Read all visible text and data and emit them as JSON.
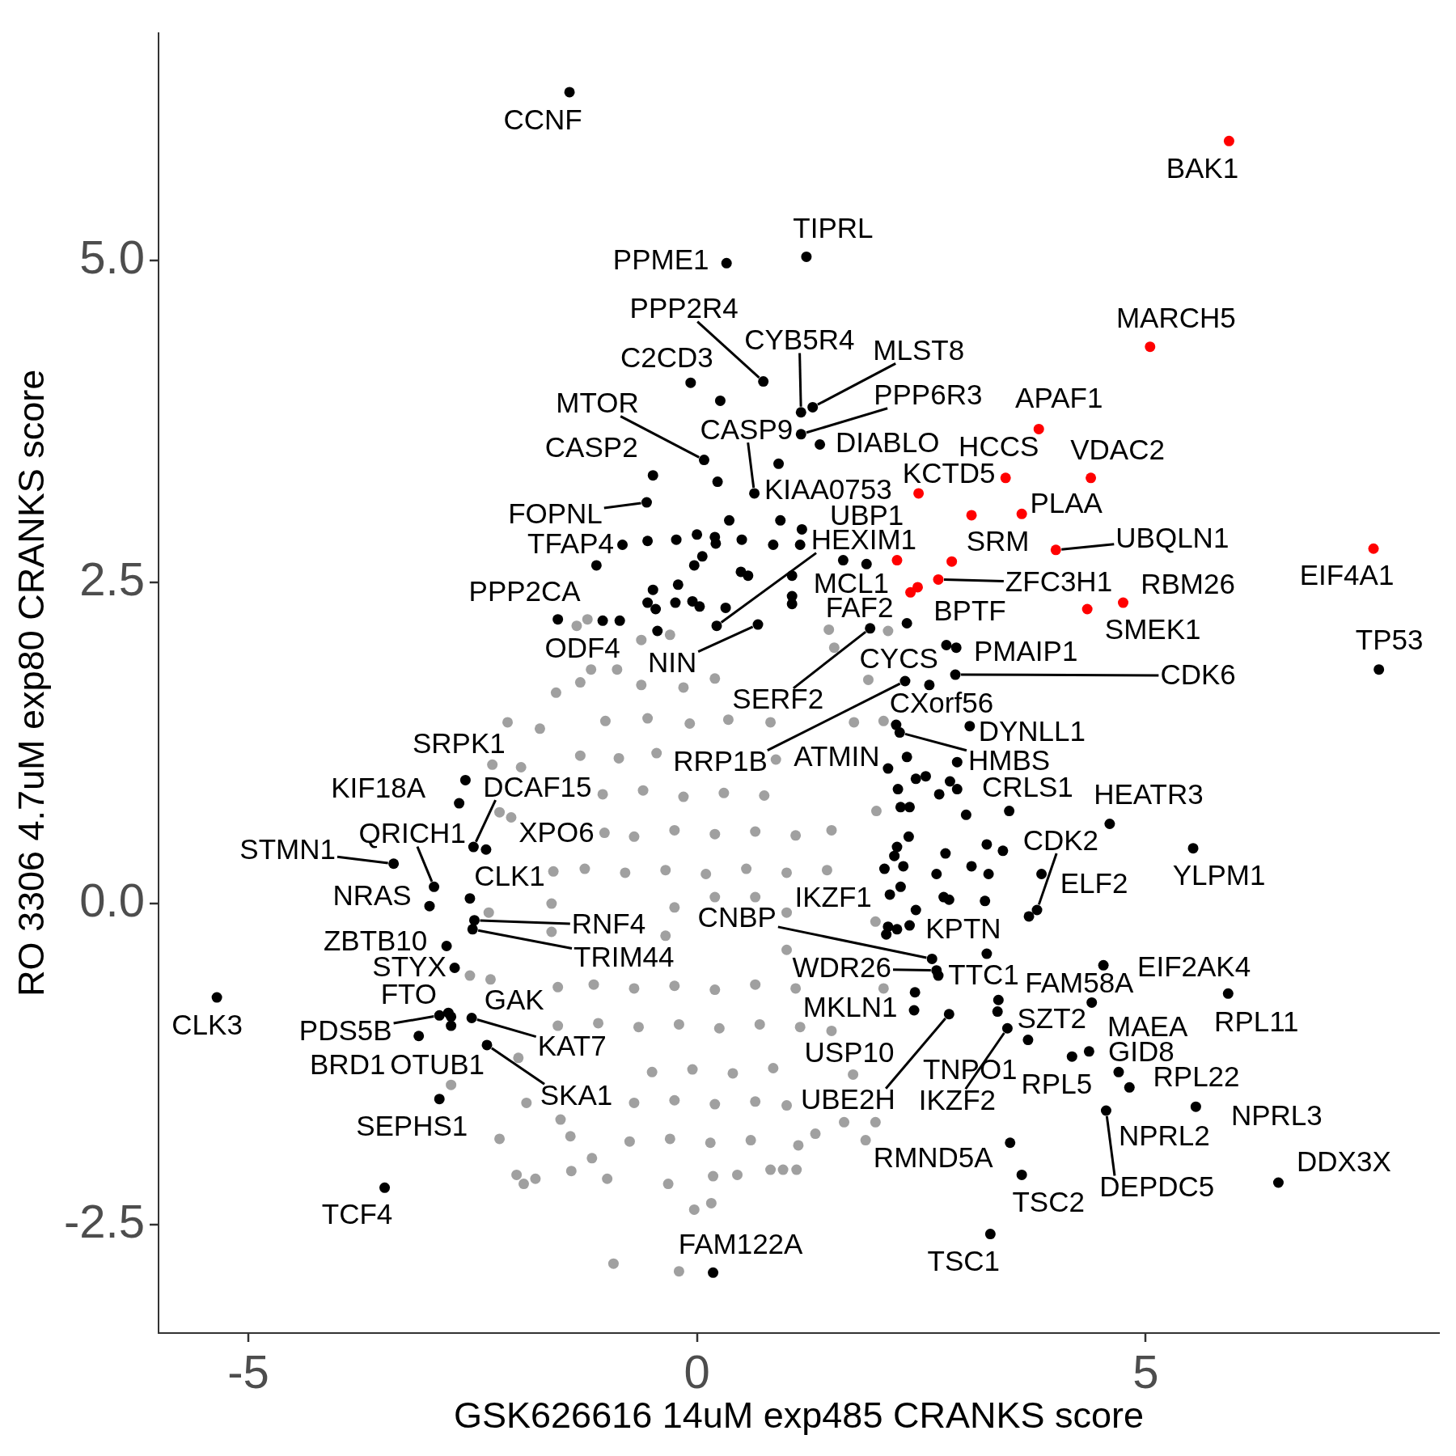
{
  "chart_data": {
    "type": "scatter",
    "xlabel": "GSK626616 14uM exp485 CRANKS score",
    "ylabel": "RO 3306 4.7uM exp80 CRANKS score",
    "xlim": [
      -6,
      8.27
    ],
    "ylim": [
      -3.34,
      6.77
    ],
    "xticks": [
      -5,
      0,
      5
    ],
    "yticks": [
      -2.5,
      {
        "value": 0,
        "label": "0.0"
      },
      2.5,
      {
        "value": 5,
        "label": "5.0"
      }
    ],
    "grid": false,
    "legend": false,
    "marker": "circle",
    "series": [
      {
        "color": "#a0a0a0",
        "x": [
          -2.11,
          -1.75,
          -1.57,
          -1.3,
          -2.28,
          -1.96,
          -2.2,
          -2.07,
          -2.53,
          -2.32,
          -2.2,
          -2.01,
          -1.93,
          -1.8,
          -1.4,
          -1.0,
          -0.93,
          -2.74,
          -1.52,
          -1.41,
          -1.17,
          -1.9,
          -1.99,
          -2.3,
          -0.2,
          -0.03,
          0.16,
          -0.32,
          0.18,
          0.45,
          0.96,
          1.11,
          0.82,
          1.13,
          1.88,
          1.99,
          1.64,
          1.32,
          1.74,
          2.08,
          1.99,
          2.0,
          1.75,
          2.08,
          1.47,
          2.13,
          -0.62,
          -0.3,
          -1.34,
          -1.22,
          -1.18,
          -0.89,
          1.53,
          1.91,
          -0.62,
          -0.15,
          0.2,
          -1.02,
          -0.55,
          -0.08,
          0.35,
          0.82,
          -1.3,
          -0.87,
          -0.45,
          0.88,
          -1.05,
          -0.6,
          -0.15,
          0.3,
          0.75,
          -1.03,
          -0.7,
          -0.25,
          0.2,
          0.65,
          1.1,
          1.5,
          -1.6,
          -1.25,
          -0.8,
          -0.35,
          0.1,
          0.55,
          1.0,
          1.45,
          -1.62,
          -0.25,
          0.2,
          0.65,
          1.0,
          -1.62,
          -0.35,
          1.0,
          -1.55,
          -1.15,
          -0.7,
          -0.25,
          0.2,
          0.65,
          1.1,
          -1.55,
          -1.1,
          -0.65,
          -0.2,
          0.25,
          0.7,
          1.15,
          1.5,
          -0.5,
          -0.05,
          0.4,
          0.85,
          -0.7,
          -0.25,
          0.2,
          0.65,
          1.0,
          -0.75,
          -0.3,
          0.15,
          0.6
        ],
        "values": [
          1.41,
          1.36,
          1.64,
          1.72,
          1.08,
          1.06,
          0.71,
          0.67,
          -0.56,
          -0.07,
          -1.83,
          -2.11,
          -2.18,
          -2.14,
          -2.08,
          -2.14,
          -2.8,
          -1.41,
          -1.68,
          -1.81,
          -1.98,
          -1.55,
          -1.2,
          -0.59,
          -2.86,
          -2.38,
          -2.33,
          -2.18,
          -2.12,
          -2.11,
          -2.07,
          -2.07,
          -2.07,
          -1.88,
          -1.84,
          -1.7,
          -1.7,
          -1.79,
          -1.33,
          -0.66,
          -0.14,
          0.72,
          1.41,
          1.42,
          2.13,
          2.12,
          2.05,
          2.09,
          2.16,
          2.21,
          1.82,
          1.82,
          1.99,
          1.74,
          1.7,
          1.68,
          1.75,
          1.42,
          1.44,
          1.4,
          1.43,
          1.41,
          1.15,
          1.13,
          1.17,
          1.12,
          0.85,
          0.88,
          0.83,
          0.86,
          0.84,
          0.55,
          0.52,
          0.57,
          0.54,
          0.56,
          0.53,
          0.57,
          0.25,
          0.27,
          0.24,
          0.26,
          0.23,
          0.27,
          0.24,
          0.26,
          0.0,
          -0.03,
          0.05,
          0.05,
          -0.07,
          -0.22,
          -0.25,
          -0.36,
          -0.65,
          -0.63,
          -0.66,
          -0.64,
          -0.67,
          -0.63,
          -0.66,
          -0.95,
          -0.93,
          -0.96,
          -0.94,
          -0.97,
          -0.94,
          -0.96,
          -0.99,
          -1.31,
          -1.29,
          -1.32,
          -1.28,
          -1.55,
          -1.53,
          -1.56,
          -1.54,
          -1.57,
          -1.85,
          -1.83,
          -1.86,
          -1.84
        ]
      },
      {
        "color": "#000000",
        "x": [
          -1.42,
          1.22,
          0.33,
          0.74,
          -0.07,
          1.16,
          1.29,
          1.16,
          0.08,
          0.91,
          1.37,
          0.64,
          -0.49,
          -0.56,
          -0.83,
          -1.55,
          -1.05,
          2.78,
          2.89,
          1.93,
          2.34,
          2.88,
          0.68,
          0.22,
          2.59,
          2.32,
          3.04,
          2.22,
          2.26,
          2.9,
          4.6,
          3.79,
          3.84,
          3.35,
          3.23,
          2.15,
          2.62,
          2.67,
          2.69,
          3.36,
          2.43,
          2.42,
          2.81,
          3.69,
          3.46,
          3.49,
          3.62,
          3.27,
          0.18,
          4.53,
          5.92,
          4.4,
          4.37,
          4.18,
          4.7,
          4.82,
          4.56,
          5.56,
          6.48,
          5.53,
          7.6,
          -2.58,
          -2.65,
          -2.49,
          -2.35,
          -2.93,
          -3.38,
          -2.98,
          -2.53,
          -2.48,
          -2.5,
          -2.79,
          -2.7,
          -2.77,
          -2.87,
          -2.74,
          -2.51,
          -2.74,
          -3.1,
          -2.34,
          -2.87,
          -5.35,
          -3.48,
          0.26,
          0.23,
          0.36,
          0.93,
          -0.23,
          0.0,
          0.2,
          0.21,
          0.5,
          0.85,
          1.17,
          1.15,
          0.06,
          -0.03,
          0.49,
          0.57,
          1.06,
          1.63,
          1.89,
          -0.49,
          -0.21,
          -0.55,
          -0.46,
          -0.24,
          -0.05,
          0.03,
          0.32,
          1.06,
          1.06,
          -0.44,
          -0.55,
          -1.12,
          -0.86,
          2.34,
          2.13,
          2.44,
          2.55,
          2.82,
          2.7,
          2.9,
          2.24,
          2.27,
          2.37,
          3.0,
          3.48,
          2.36,
          2.23,
          2.2,
          2.3,
          2.09,
          2.27,
          3.23,
          3.41,
          2.77,
          3.06,
          2.67,
          3.25,
          2.75,
          2.81,
          3.21,
          2.44,
          3.7,
          2.13,
          2.23,
          2.37,
          2.11
        ],
        "values": [
          6.31,
          5.03,
          4.98,
          4.06,
          4.05,
          3.82,
          3.86,
          3.65,
          3.45,
          3.42,
          3.57,
          3.19,
          3.33,
          3.12,
          2.79,
          2.21,
          2.2,
          2.01,
          1.99,
          2.14,
          2.18,
          1.78,
          2.17,
          2.16,
          1.7,
          1.73,
          1.38,
          1.39,
          1.33,
          1.1,
          0.62,
          -0.05,
          0.23,
          -0.84,
          -0.39,
          0.07,
          -0.43,
          -0.52,
          -0.56,
          -0.75,
          -0.69,
          -0.83,
          -0.86,
          -1.06,
          -0.97,
          -1.86,
          -2.11,
          -2.57,
          -2.87,
          -0.48,
          -0.7,
          -0.77,
          -1.15,
          -1.19,
          -1.31,
          -1.43,
          -1.61,
          -1.58,
          -2.17,
          0.43,
          1.82,
          0.96,
          0.78,
          0.44,
          0.42,
          0.13,
          0.31,
          -0.02,
          0.04,
          -0.13,
          -0.2,
          -0.33,
          -0.5,
          -0.85,
          -0.87,
          -0.88,
          -0.89,
          -0.95,
          -1.03,
          -1.1,
          -1.52,
          -0.73,
          -2.21,
          3.91,
          3.28,
          2.98,
          2.98,
          2.83,
          2.87,
          2.85,
          2.8,
          2.83,
          2.79,
          2.91,
          2.79,
          2.7,
          2.63,
          2.58,
          2.55,
          2.55,
          2.67,
          2.64,
          2.44,
          2.48,
          2.34,
          2.29,
          2.34,
          2.35,
          2.31,
          2.3,
          2.39,
          2.33,
          2.12,
          2.82,
          2.63,
          2.2,
          1.14,
          1.05,
          0.97,
          0.99,
          0.95,
          0.85,
          0.89,
          0.89,
          0.75,
          0.75,
          0.69,
          0.72,
          0.52,
          0.44,
          0.37,
          0.29,
          0.27,
          0.13,
          0.46,
          0.41,
          0.39,
          0.29,
          0.23,
          0.23,
          0.05,
          0.03,
          0.02,
          -0.05,
          -0.1,
          -0.18,
          -0.2,
          -0.17,
          -0.24
        ]
      },
      {
        "color": "#ff0000",
        "x": [
          5.93,
          5.05,
          7.54,
          3.81,
          3.44,
          4.39,
          2.47,
          3.06,
          3.62,
          4.0,
          2.23,
          2.84,
          2.69,
          2.38,
          4.75,
          4.35,
          2.46
        ],
        "values": [
          5.93,
          4.33,
          2.76,
          3.69,
          3.31,
          3.31,
          3.19,
          3.02,
          3.03,
          2.75,
          2.67,
          2.66,
          2.52,
          2.42,
          2.34,
          2.29,
          2.46
        ]
      }
    ],
    "annotations": [
      {
        "text": "CCNF",
        "x": -1.42,
        "y": 6.31
      },
      {
        "text": "TIPRL",
        "x": 1.22,
        "y": 5.03
      },
      {
        "text": "PPME1",
        "x": 0.33,
        "y": 4.98
      },
      {
        "text": "PPP2R4",
        "x": 0.74,
        "y": 4.06
      },
      {
        "text": "C2CD3",
        "x": -0.07,
        "y": 4.05
      },
      {
        "text": "CYB5R4",
        "x": 1.16,
        "y": 3.82
      },
      {
        "text": "MLST8",
        "x": 1.29,
        "y": 3.86
      },
      {
        "text": "PPP6R3",
        "x": 1.16,
        "y": 3.65
      },
      {
        "text": "MTOR",
        "x": 0.08,
        "y": 3.45
      },
      {
        "text": "KIAA0753",
        "x": 0.91,
        "y": 3.42
      },
      {
        "text": "DIABLO",
        "x": 1.37,
        "y": 3.57
      },
      {
        "text": "CASP9",
        "x": 0.64,
        "y": 3.19
      },
      {
        "text": "CASP2",
        "x": -0.49,
        "y": 3.33
      },
      {
        "text": "FOPNL",
        "x": -0.56,
        "y": 3.12
      },
      {
        "text": "TFAP4",
        "x": -0.83,
        "y": 2.79
      },
      {
        "text": "PPP2CA",
        "x": -1.55,
        "y": 2.21
      },
      {
        "text": "ODF4",
        "x": -1.05,
        "y": 2.2
      },
      {
        "text": "BPTF",
        "x": 2.78,
        "y": 2.01
      },
      {
        "text": "PMAIP1",
        "x": 2.89,
        "y": 1.99
      },
      {
        "text": "CYCS",
        "x": 2.34,
        "y": 2.18
      },
      {
        "text": "SERF2",
        "x": 1.93,
        "y": 2.14
      },
      {
        "text": "CDK6",
        "x": 2.88,
        "y": 1.78
      },
      {
        "text": "NIN",
        "x": 0.68,
        "y": 2.17
      },
      {
        "text": "HEXIM1",
        "x": 0.22,
        "y": 2.16
      },
      {
        "text": "CXorf56",
        "x": 2.59,
        "y": 1.7
      },
      {
        "text": "RRP1B",
        "x": 2.32,
        "y": 1.73
      },
      {
        "text": "DYNLL1",
        "x": 3.04,
        "y": 1.38
      },
      {
        "text": "ATMIN",
        "x": 2.22,
        "y": 1.39
      },
      {
        "text": "HMBS",
        "x": 2.26,
        "y": 1.33
      },
      {
        "text": "CRLS1",
        "x": 2.9,
        "y": 1.1
      },
      {
        "text": "HEATR3",
        "x": 4.6,
        "y": 0.62
      },
      {
        "text": "CDK2",
        "x": 3.79,
        "y": -0.05
      },
      {
        "text": "ELF2",
        "x": 3.84,
        "y": 0.23
      },
      {
        "text": "SZT2",
        "x": 3.35,
        "y": -0.84
      },
      {
        "text": "KPTN",
        "x": 3.23,
        "y": -0.39
      },
      {
        "text": "IKZF1",
        "x": 2.15,
        "y": 0.07
      },
      {
        "text": "CNBP",
        "x": 2.62,
        "y": -0.43
      },
      {
        "text": "WDR26",
        "x": 2.67,
        "y": -0.52
      },
      {
        "text": "TTC1",
        "x": 2.69,
        "y": -0.56
      },
      {
        "text": "FAM58A",
        "x": 3.36,
        "y": -0.75
      },
      {
        "text": "MKLN1",
        "x": 2.43,
        "y": -0.69
      },
      {
        "text": "USP10",
        "x": 2.42,
        "y": -0.83
      },
      {
        "text": "UBE2H",
        "x": 2.81,
        "y": -0.86
      },
      {
        "text": "TNPO1",
        "x": 3.69,
        "y": -1.06
      },
      {
        "text": "IKZF2",
        "x": 3.46,
        "y": -0.97
      },
      {
        "text": "RMND5A",
        "x": 3.49,
        "y": -1.86
      },
      {
        "text": "TSC2",
        "x": 3.62,
        "y": -2.11
      },
      {
        "text": "TSC1",
        "x": 3.27,
        "y": -2.57
      },
      {
        "text": "FAM122A",
        "x": 0.18,
        "y": -2.87
      },
      {
        "text": "EIF2AK4",
        "x": 4.53,
        "y": -0.48
      },
      {
        "text": "RPL11",
        "x": 5.92,
        "y": -0.7
      },
      {
        "text": "MAEA",
        "x": 4.4,
        "y": -0.77
      },
      {
        "text": "RPL5",
        "x": 4.37,
        "y": -1.15
      },
      {
        "text": "GID8",
        "x": 4.18,
        "y": -1.19
      },
      {
        "text": "RPL22",
        "x": 4.7,
        "y": -1.31
      },
      {
        "text": "NPRL2",
        "x": 4.82,
        "y": -1.43
      },
      {
        "text": "DEPDC5",
        "x": 4.56,
        "y": -1.61
      },
      {
        "text": "NPRL3",
        "x": 5.56,
        "y": -1.58
      },
      {
        "text": "DDX3X",
        "x": 6.48,
        "y": -2.17
      },
      {
        "text": "YLPM1",
        "x": 5.53,
        "y": 0.43
      },
      {
        "text": "TP53",
        "x": 7.6,
        "y": 1.82
      },
      {
        "text": "SRPK1",
        "x": -2.58,
        "y": 0.96
      },
      {
        "text": "KIF18A",
        "x": -2.65,
        "y": 0.78
      },
      {
        "text": "DCAF15",
        "x": -2.49,
        "y": 0.44
      },
      {
        "text": "XPO6",
        "x": -2.35,
        "y": 0.42
      },
      {
        "text": "QRICH1",
        "x": -2.93,
        "y": 0.13
      },
      {
        "text": "STMN1",
        "x": -3.38,
        "y": 0.31
      },
      {
        "text": "NRAS",
        "x": -2.98,
        "y": -0.02
      },
      {
        "text": "CLK1",
        "x": -2.53,
        "y": 0.04
      },
      {
        "text": "RNF4",
        "x": -2.48,
        "y": -0.13
      },
      {
        "text": "TRIM44",
        "x": -2.5,
        "y": -0.2
      },
      {
        "text": "ZBTB10",
        "x": -2.79,
        "y": -0.33
      },
      {
        "text": "STYX",
        "x": -2.7,
        "y": -0.5
      },
      {
        "text": "FTO",
        "x": -2.77,
        "y": -0.85
      },
      {
        "text": "PDS5B",
        "x": -2.87,
        "y": -0.87
      },
      {
        "text": "GAK",
        "x": -2.74,
        "y": -0.88
      },
      {
        "text": "KAT7",
        "x": -2.51,
        "y": -0.89
      },
      {
        "text": "OTUB1",
        "x": -2.74,
        "y": -0.95
      },
      {
        "text": "BRD1",
        "x": -3.1,
        "y": -1.03
      },
      {
        "text": "SKA1",
        "x": -2.34,
        "y": -1.1
      },
      {
        "text": "SEPHS1",
        "x": -2.87,
        "y": -1.52
      },
      {
        "text": "CLK3",
        "x": -5.35,
        "y": -0.73
      },
      {
        "text": "TCF4",
        "x": -3.48,
        "y": -2.21
      },
      {
        "text": "BAK1",
        "x": 5.93,
        "y": 5.93
      },
      {
        "text": "MARCH5",
        "x": 5.05,
        "y": 4.33
      },
      {
        "text": "EIF4A1",
        "x": 7.54,
        "y": 2.76
      },
      {
        "text": "APAF1",
        "x": 3.81,
        "y": 3.69
      },
      {
        "text": "HCCS",
        "x": 3.44,
        "y": 3.31
      },
      {
        "text": "VDAC2",
        "x": 4.39,
        "y": 3.31
      },
      {
        "text": "UBP1",
        "x": 2.47,
        "y": 3.19
      },
      {
        "text": "KCTD5",
        "x": 3.06,
        "y": 3.02
      },
      {
        "text": "PLAA",
        "x": 3.62,
        "y": 3.03
      },
      {
        "text": "UBQLN1",
        "x": 4.0,
        "y": 2.75
      },
      {
        "text": "MCL1",
        "x": 2.23,
        "y": 2.67
      },
      {
        "text": "SRM",
        "x": 2.84,
        "y": 2.66
      },
      {
        "text": "ZFC3H1",
        "x": 2.69,
        "y": 2.52
      },
      {
        "text": "FAF2",
        "x": 2.38,
        "y": 2.42
      },
      {
        "text": "RBM26",
        "x": 4.75,
        "y": 2.34
      },
      {
        "text": "SMEK1",
        "x": 4.35,
        "y": 2.29
      }
    ]
  }
}
